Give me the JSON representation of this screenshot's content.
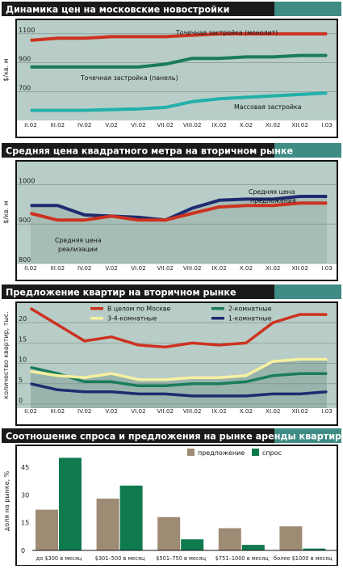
{
  "colors": {
    "panel_bg": "#b8cdc7",
    "header_dark": "#1a1a1a",
    "header_teal": "#3f8c84",
    "grid": "#7a8c88",
    "red": "#cc3320",
    "green": "#1a7c5a",
    "teal": "#22b0aa",
    "navy": "#1e2b70",
    "yellow": "#f7f0a0",
    "brown": "#9e8b74",
    "dkgreen": "#0e7a4e"
  },
  "chart_data": [
    {
      "type": "line",
      "title": "Динамика цен на московские новостройки",
      "ylabel": "$/кв. м",
      "categories": [
        "II.02",
        "III.02",
        "IV.02",
        "V.02",
        "VI.02",
        "VII.02",
        "VIII.02",
        "IX.02",
        "X.02",
        "XI.02",
        "XII.02",
        "I.03"
      ],
      "yticks": [
        700,
        900,
        1100
      ],
      "ylim": [
        500,
        1200
      ],
      "grid": true,
      "series": [
        {
          "name": "Точечная застройка (монолит)",
          "color": "#cc3320",
          "values": [
            1055,
            1070,
            1070,
            1080,
            1080,
            1080,
            1090,
            1100,
            1100,
            1100,
            1100,
            1100
          ]
        },
        {
          "name": "Точечная застройка (панель)",
          "color": "#1a7c5a",
          "values": [
            870,
            870,
            870,
            870,
            870,
            890,
            930,
            930,
            940,
            940,
            950,
            950
          ]
        },
        {
          "name": "Массовая застройка",
          "color": "#22b0aa",
          "values": [
            570,
            570,
            570,
            575,
            580,
            590,
            630,
            650,
            660,
            670,
            680,
            690
          ]
        }
      ]
    },
    {
      "type": "area",
      "title": "Средняя цена квадратного метра на вторичном рынке",
      "ylabel": "$/кв. м",
      "categories": [
        "II.02",
        "III.02",
        "IV.02",
        "V.02",
        "VI.02",
        "VII.02",
        "VIII.02",
        "IX.02",
        "X.02",
        "XI.02",
        "XII.02",
        "I.03"
      ],
      "yticks": [
        800,
        900,
        1000
      ],
      "ylim": [
        800,
        1060
      ],
      "grid": true,
      "series": [
        {
          "name": "Средняя цена предложения",
          "color": "#1e2b70",
          "values": [
            947,
            947,
            923,
            920,
            917,
            910,
            940,
            960,
            963,
            963,
            970,
            970
          ]
        },
        {
          "name": "Средняя цена реализации",
          "color": "#cc3320",
          "values": [
            927,
            910,
            910,
            920,
            910,
            910,
            927,
            943,
            947,
            947,
            953,
            953
          ]
        }
      ]
    },
    {
      "type": "line",
      "title": "Предложение квартир на вторичном рынке",
      "ylabel": "количество квартир, тыс.",
      "categories": [
        "II.02",
        "III.02",
        "IV.02",
        "V.02",
        "VI.02",
        "VII.02",
        "VIII.02",
        "IX.02",
        "X.02",
        "XI.02",
        "XII.02",
        "I.03"
      ],
      "yticks": [
        0,
        5,
        10,
        15,
        20
      ],
      "ylim": [
        -1,
        25
      ],
      "grid": true,
      "legend": "top",
      "series": [
        {
          "name": "В целом по Москве",
          "color": "#cc3320",
          "values": [
            23.5,
            19.5,
            15.5,
            16.5,
            14.5,
            14,
            15,
            14.5,
            15,
            20,
            22,
            22
          ]
        },
        {
          "name": "2-комнатные",
          "color": "#1a7c5a",
          "values": [
            9,
            7.5,
            5.5,
            5.5,
            4.5,
            4.5,
            5,
            5,
            5.5,
            7,
            7.5,
            7.5
          ]
        },
        {
          "name": "3-4-комнатные",
          "color": "#f7f0a0",
          "values": [
            8,
            7,
            6.5,
            7.5,
            6,
            6,
            6.5,
            6.5,
            7,
            10.5,
            11,
            11
          ]
        },
        {
          "name": "1-комнатные",
          "color": "#1e2b70",
          "values": [
            5,
            3.5,
            3,
            3,
            2.5,
            2.5,
            2,
            2,
            2,
            2.5,
            2.5,
            3
          ]
        }
      ]
    },
    {
      "type": "bar",
      "title": "Соотношение спроса и предложения на рынке аренды квартир",
      "ylabel": "доля на рынке, %",
      "categories": [
        "до $300 в месяц",
        "$301–500 в месяц",
        "$501–750 в месяц",
        "$751–1000 в месяц",
        "более $1000 в месяц"
      ],
      "yticks": [
        0,
        15,
        30,
        45
      ],
      "ylim": [
        0,
        55
      ],
      "grid": false,
      "legend": "top",
      "series": [
        {
          "name": "предложение",
          "color": "#9e8b74",
          "values": [
            22,
            28,
            18,
            12,
            13
          ]
        },
        {
          "name": "спрос",
          "color": "#0e7a4e",
          "values": [
            50,
            35,
            6,
            3,
            1
          ]
        }
      ]
    }
  ]
}
